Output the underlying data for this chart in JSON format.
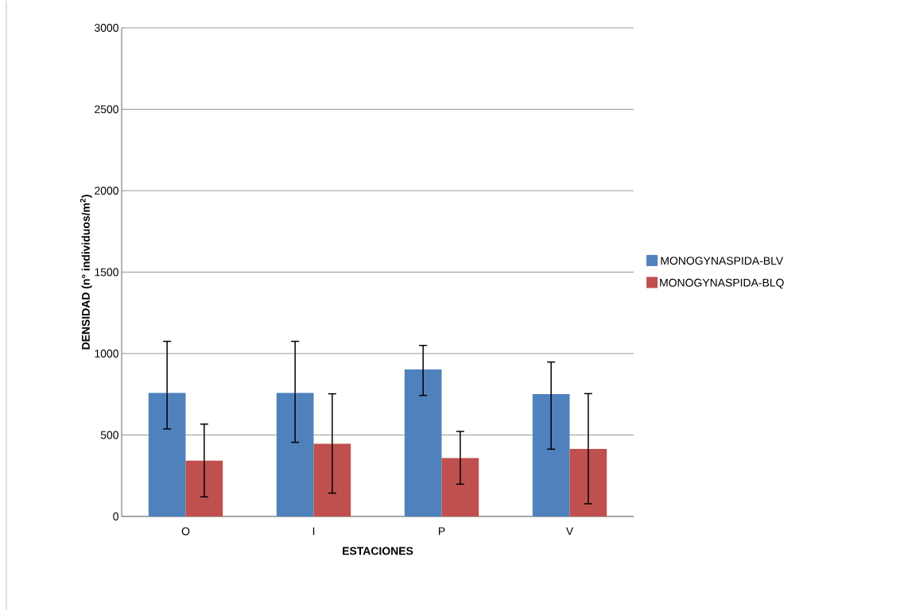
{
  "chart_data": {
    "type": "bar",
    "xlabel": "ESTACIONES",
    "ylabel": "DENSIDAD (n° individuos/m$^{2}$)",
    "categories": [
      "O",
      "I",
      "P",
      "V"
    ],
    "series": [
      {
        "name": "MONOGYNASPIDA-BLV",
        "color": "#4f81bd",
        "values": [
          758,
          758,
          902,
          751
        ],
        "errors": [
          [
            537,
            1075
          ],
          [
            455,
            1075
          ],
          [
            743,
            1050
          ],
          [
            413,
            948
          ]
        ]
      },
      {
        "name": "MONOGYNASPIDA-BLQ",
        "color": "#c0504d",
        "values": [
          343,
          446,
          358,
          415
        ],
        "errors": [
          [
            120,
            567
          ],
          [
            143,
            753
          ],
          [
            198,
            522
          ],
          [
            78,
            754
          ]
        ]
      }
    ],
    "ylim": [
      0,
      3000
    ],
    "yticks": [
      0,
      500,
      1000,
      1500,
      2000,
      2500,
      3000
    ],
    "grid": "y",
    "legend": "right"
  }
}
